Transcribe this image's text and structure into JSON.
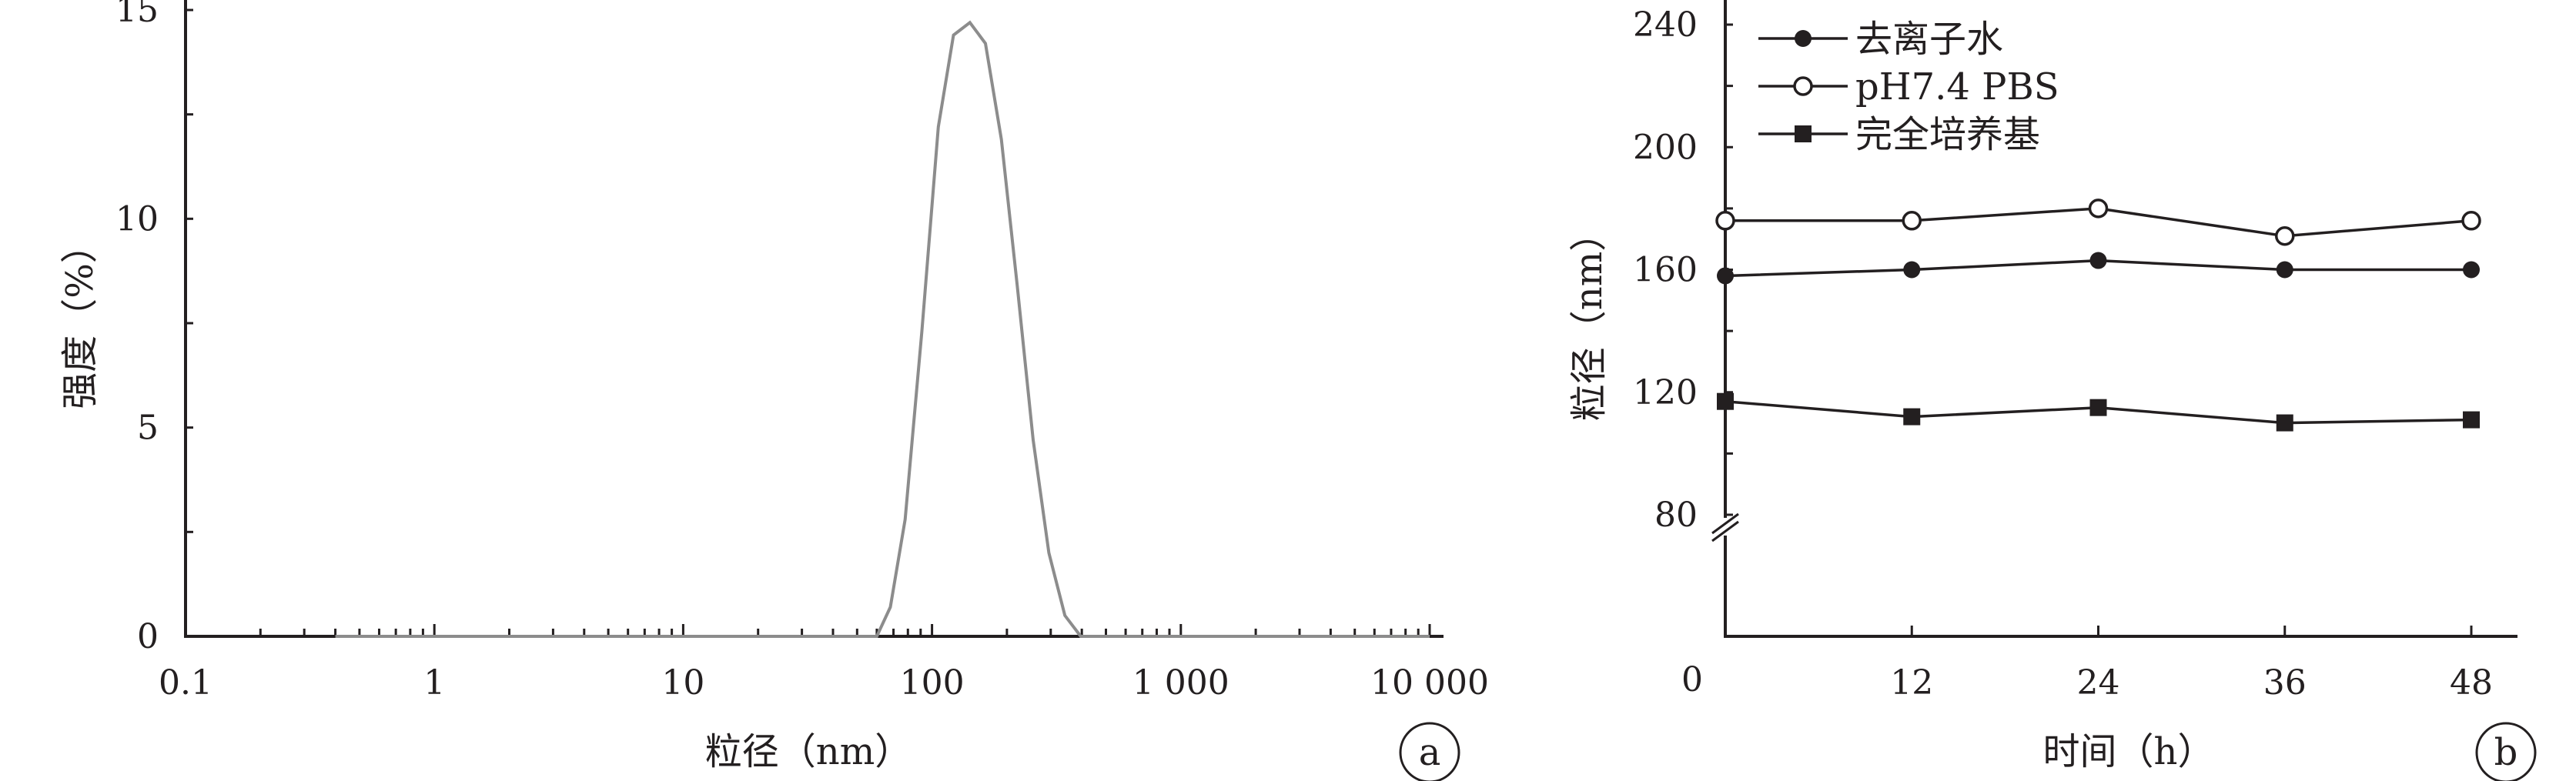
{
  "chart_data": [
    {
      "type": "line",
      "panel_label": "a",
      "xlabel": "粒径（nm）",
      "ylabel": "强度（%）",
      "x_scale": "log",
      "xlim": [
        0.1,
        10000
      ],
      "ylim": [
        0,
        15
      ],
      "x_tick_labels": [
        "0.1",
        "1",
        "10",
        "100",
        "1 000",
        "10 000"
      ],
      "y_tick_labels": [
        "0",
        "5",
        "10",
        "15"
      ],
      "series": [
        {
          "x": [
            0.4,
            10,
            50,
            60,
            68,
            78,
            91,
            106,
            122,
            142,
            164,
            190,
            220,
            255,
            295,
            342,
            396,
            459,
            530,
            1000,
            10000
          ],
          "values": [
            0,
            0,
            0,
            0,
            0.7,
            2.8,
            7.3,
            12.2,
            14.4,
            14.7,
            14.2,
            11.9,
            8.4,
            4.7,
            2.0,
            0.5,
            0,
            0,
            0,
            0,
            0
          ]
        }
      ]
    },
    {
      "type": "line",
      "panel_label": "b",
      "xlabel": "时间（h）",
      "ylabel": "粒径（nm）",
      "x": [
        0,
        12,
        24,
        36,
        48
      ],
      "xlim": [
        0,
        52
      ],
      "ylim": [
        80,
        240
      ],
      "axis_break": true,
      "x_tick_labels": [
        "0",
        "12",
        "24",
        "36",
        "48"
      ],
      "y_tick_labels": [
        "80",
        "120",
        "160",
        "200",
        "240"
      ],
      "legend_position": "top-left",
      "series": [
        {
          "name": "去离子水",
          "marker": "filled-circle",
          "values": [
            158,
            160,
            163,
            160,
            160
          ]
        },
        {
          "name": "pH7.4 PBS",
          "marker": "open-circle",
          "values": [
            176,
            176,
            180,
            171,
            176
          ]
        },
        {
          "name": "完全培养基",
          "marker": "filled-square",
          "values": [
            117,
            112,
            115,
            110,
            111
          ]
        }
      ]
    }
  ]
}
